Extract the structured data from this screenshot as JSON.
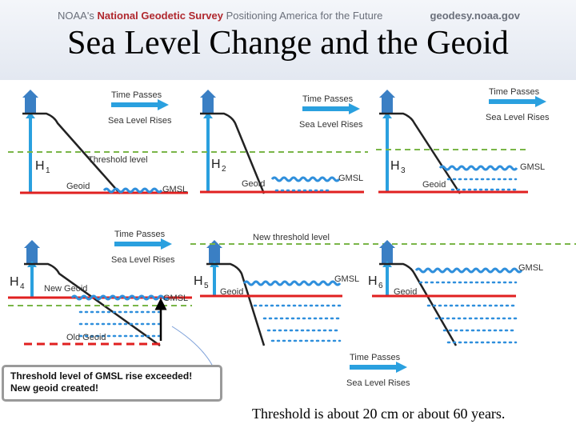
{
  "header": {
    "org": "NOAA's",
    "agency": "National Geodetic Survey",
    "tagline": "Positioning America for the Future",
    "site": "geodesy.noaa.gov"
  },
  "title": "Sea Level Change and the Geoid",
  "colors": {
    "geoid_red": "#e02020",
    "threshold_green": "#7ab648",
    "water_blue": "#2f8fdc",
    "arrow_blue": "#2aa0df",
    "house_blue": "#3a7fc4"
  },
  "labels": {
    "time_passes": "Time Passes",
    "sea_level_rises": "Sea Level Rises",
    "threshold_level": "Threshold level",
    "new_threshold_level": "New threshold level",
    "geoid": "Geoid",
    "new_geoid": "New Geoid",
    "old_geoid": "Old Geoid",
    "gmsl": "GMSL"
  },
  "panels": [
    {
      "h": "H",
      "sub": "1"
    },
    {
      "h": "H",
      "sub": "2"
    },
    {
      "h": "H",
      "sub": "3"
    },
    {
      "h": "H",
      "sub": "4"
    },
    {
      "h": "H",
      "sub": "5"
    },
    {
      "h": "H",
      "sub": "6"
    }
  ],
  "callout": {
    "line1": "Threshold level of GMSL rise exceeded!",
    "line2": "New geoid created!"
  },
  "caption": "Threshold is about 20 cm or about 60 years."
}
